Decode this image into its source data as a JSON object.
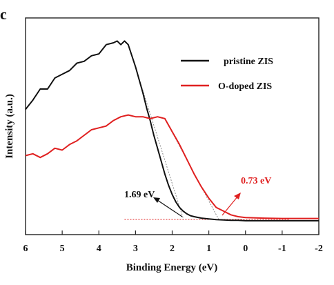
{
  "panel_label": "c",
  "chart_data": {
    "type": "line",
    "xlabel": "Binding Energy (eV)",
    "ylabel": "Intensity (a.u.)",
    "xlim": [
      6,
      -2
    ],
    "x_reversed": true,
    "ylim": [
      0,
      1
    ],
    "y_ticks_labeled": false,
    "x_ticks": [
      6,
      5,
      4,
      3,
      2,
      1,
      0,
      -1,
      -2
    ],
    "x_tick_labels": [
      "6",
      "5",
      "4",
      "3",
      "2",
      "1",
      "0",
      "-1",
      "-2"
    ],
    "legend_placement": "top-right",
    "series": [
      {
        "name": "pristine ZIS",
        "color": "#111111",
        "x": [
          6.0,
          5.8,
          5.6,
          5.4,
          5.2,
          5.0,
          4.8,
          4.6,
          4.4,
          4.2,
          4.0,
          3.8,
          3.6,
          3.5,
          3.4,
          3.3,
          3.2,
          3.1,
          3.0,
          2.9,
          2.8,
          2.7,
          2.6,
          2.5,
          2.4,
          2.3,
          2.2,
          2.1,
          2.0,
          1.9,
          1.8,
          1.7,
          1.6,
          1.5,
          1.4,
          1.2,
          1.0,
          0.8,
          0.6,
          0.4,
          0.2,
          0.0,
          -0.5,
          -1.0,
          -1.5,
          -2.0
        ],
        "y": [
          0.61,
          0.66,
          0.72,
          0.72,
          0.78,
          0.8,
          0.82,
          0.86,
          0.87,
          0.9,
          0.91,
          0.96,
          0.97,
          0.98,
          0.96,
          0.98,
          0.96,
          0.9,
          0.84,
          0.77,
          0.7,
          0.62,
          0.55,
          0.47,
          0.4,
          0.33,
          0.26,
          0.2,
          0.15,
          0.11,
          0.08,
          0.06,
          0.045,
          0.035,
          0.03,
          0.022,
          0.018,
          0.014,
          0.012,
          0.01,
          0.01,
          0.008,
          0.008,
          0.008,
          0.008,
          0.008
        ]
      },
      {
        "name": "O-doped ZIS",
        "color": "#e02020",
        "x": [
          6.0,
          5.8,
          5.6,
          5.4,
          5.2,
          5.0,
          4.8,
          4.6,
          4.4,
          4.2,
          4.0,
          3.8,
          3.6,
          3.4,
          3.2,
          3.0,
          2.8,
          2.6,
          2.4,
          2.2,
          2.0,
          1.8,
          1.6,
          1.4,
          1.2,
          1.0,
          0.8,
          0.6,
          0.4,
          0.2,
          0.0,
          -0.5,
          -1.0,
          -1.5,
          -2.0
        ],
        "y": [
          0.36,
          0.37,
          0.35,
          0.37,
          0.4,
          0.39,
          0.42,
          0.44,
          0.47,
          0.5,
          0.51,
          0.52,
          0.55,
          0.57,
          0.58,
          0.57,
          0.57,
          0.56,
          0.57,
          0.56,
          0.49,
          0.42,
          0.34,
          0.26,
          0.19,
          0.13,
          0.08,
          0.06,
          0.04,
          0.03,
          0.025,
          0.022,
          0.02,
          0.02,
          0.02
        ]
      }
    ],
    "annotations": [
      {
        "text": "1.69 eV",
        "value": 1.69,
        "color": "#111111"
      },
      {
        "text": "0.73 eV",
        "value": 0.73,
        "color": "#e02020"
      }
    ],
    "baseline_y": 0.015,
    "tangent_lines": [
      {
        "series": "pristine ZIS",
        "x": [
          3.1,
          1.69
        ]
      },
      {
        "series": "O-doped ZIS",
        "x": [
          2.2,
          0.73
        ]
      }
    ]
  }
}
